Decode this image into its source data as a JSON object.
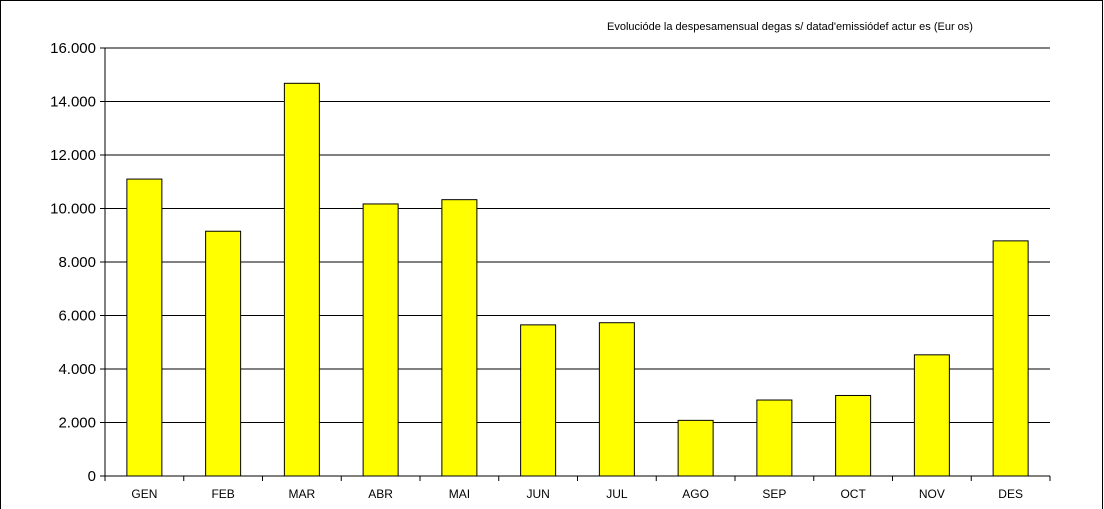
{
  "chart_data": {
    "type": "bar",
    "title": "Evolucióde la despesa mensual de gas s/ data d'emissió de factures (Euros)",
    "title_display": "Evolucióde la despesamensual degas s/ datad'emissiódef actur es (Eur os)",
    "xlabel": "",
    "ylabel": "",
    "categories": [
      "GEN",
      "FEB",
      "MAR",
      "ABR",
      "MAI",
      "JUN",
      "JUL",
      "AGO",
      "SEP",
      "OCT",
      "NOV",
      "DES"
    ],
    "values": [
      11100,
      9150,
      14680,
      10170,
      10330,
      5650,
      5730,
      2080,
      2840,
      3010,
      4530,
      8790
    ],
    "ylim": [
      0,
      16000
    ],
    "yticks": [
      0,
      2000,
      4000,
      6000,
      8000,
      10000,
      12000,
      14000,
      16000
    ],
    "ytick_labels": [
      "0",
      "2.000",
      "4.000",
      "6.000",
      "8.000",
      "10.000",
      "12.000",
      "14.000",
      "16.000"
    ],
    "grid": true,
    "legend": "none",
    "colors": {
      "bar_fill": "#ffff00",
      "bar_stroke": "#000000",
      "grid": "#000000",
      "background": "#ffffff"
    }
  }
}
